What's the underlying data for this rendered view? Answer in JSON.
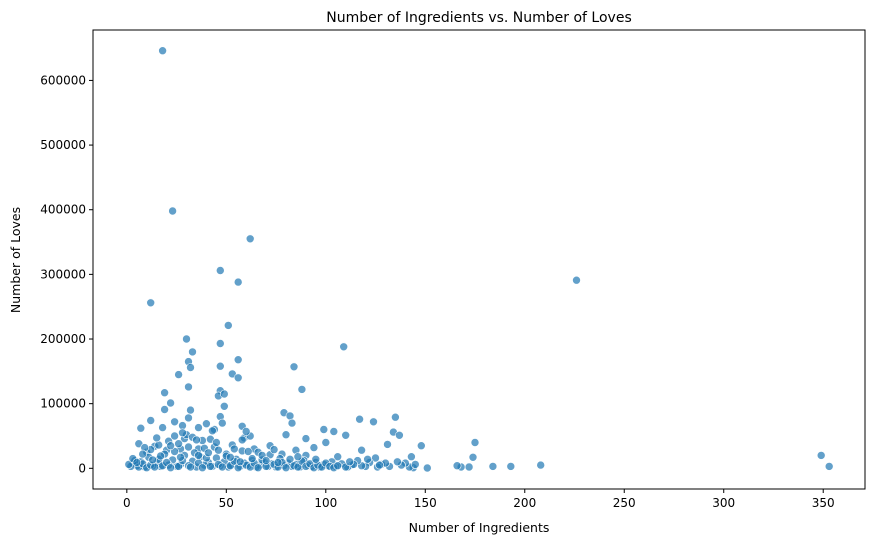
{
  "chart_data": {
    "type": "scatter",
    "title": "Number of Ingredients vs. Number of Loves",
    "xlabel": "Number of Ingredients",
    "ylabel": "Number of Loves",
    "xlim": [
      -17,
      371
    ],
    "ylim": [
      -32000,
      678000
    ],
    "xticks": [
      0,
      50,
      100,
      150,
      200,
      250,
      300,
      350
    ],
    "yticks": [
      0,
      100000,
      200000,
      300000,
      400000,
      500000,
      600000
    ],
    "grid": false,
    "marker_color": "#1f77b4",
    "marker_opacity": 0.7,
    "points": [
      [
        18,
        646000
      ],
      [
        23,
        398000
      ],
      [
        62,
        355000
      ],
      [
        47,
        306000
      ],
      [
        56,
        288000
      ],
      [
        226,
        291000
      ],
      [
        12,
        256000
      ],
      [
        51,
        221000
      ],
      [
        30,
        200000
      ],
      [
        47,
        193000
      ],
      [
        109,
        188000
      ],
      [
        33,
        180000
      ],
      [
        56,
        168000
      ],
      [
        31,
        165000
      ],
      [
        32,
        156000
      ],
      [
        47,
        158000
      ],
      [
        84,
        157000
      ],
      [
        53,
        146000
      ],
      [
        26,
        145000
      ],
      [
        56,
        140000
      ],
      [
        31,
        126000
      ],
      [
        88,
        122000
      ],
      [
        47,
        120000
      ],
      [
        46,
        112000
      ],
      [
        49,
        115000
      ],
      [
        19,
        117000
      ],
      [
        22,
        101000
      ],
      [
        49,
        96000
      ],
      [
        32,
        90000
      ],
      [
        19,
        91000
      ],
      [
        79,
        86000
      ],
      [
        82,
        81000
      ],
      [
        47,
        80000
      ],
      [
        31,
        78000
      ],
      [
        117,
        76000
      ],
      [
        124,
        72000
      ],
      [
        135,
        79000
      ],
      [
        12,
        74000
      ],
      [
        24,
        72000
      ],
      [
        83,
        70000
      ],
      [
        40,
        69000
      ],
      [
        28,
        66000
      ],
      [
        58,
        65000
      ],
      [
        7,
        62000
      ],
      [
        18,
        63000
      ],
      [
        36,
        63000
      ],
      [
        99,
        60000
      ],
      [
        104,
        57000
      ],
      [
        134,
        56000
      ],
      [
        110,
        51000
      ],
      [
        137,
        51000
      ],
      [
        59,
        47000
      ],
      [
        62,
        50000
      ],
      [
        60,
        57000
      ],
      [
        80,
        52000
      ],
      [
        90,
        46000
      ],
      [
        42,
        45000
      ],
      [
        29,
        46000
      ],
      [
        175,
        40000
      ],
      [
        131,
        37000
      ],
      [
        100,
        40000
      ],
      [
        148,
        35000
      ],
      [
        6,
        38000
      ],
      [
        53,
        36000
      ],
      [
        72,
        35000
      ],
      [
        38,
        43000
      ],
      [
        44,
        60000
      ],
      [
        27,
        30000
      ],
      [
        14,
        34000
      ],
      [
        94,
        32000
      ],
      [
        64,
        30000
      ],
      [
        85,
        28000
      ],
      [
        118,
        28000
      ],
      [
        10,
        25000
      ],
      [
        20,
        28000
      ],
      [
        36,
        30000
      ],
      [
        50,
        22000
      ],
      [
        66,
        25000
      ],
      [
        78,
        22000
      ],
      [
        90,
        20000
      ],
      [
        106,
        18000
      ],
      [
        125,
        16000
      ],
      [
        143,
        18000
      ],
      [
        174,
        17000
      ],
      [
        349,
        20000
      ],
      [
        353,
        3000
      ],
      [
        208,
        5000
      ],
      [
        193,
        3000
      ],
      [
        184,
        3000
      ],
      [
        172,
        2000
      ],
      [
        168,
        2000
      ],
      [
        166,
        4000
      ],
      [
        151,
        500
      ],
      [
        144,
        1000
      ],
      [
        142,
        2000
      ],
      [
        140,
        8000
      ],
      [
        138,
        5000
      ],
      [
        136,
        10000
      ],
      [
        132,
        3000
      ],
      [
        128,
        6000
      ],
      [
        126,
        2000
      ],
      [
        122,
        9000
      ],
      [
        120,
        3000
      ],
      [
        118,
        4000
      ],
      [
        116,
        12000
      ],
      [
        113,
        5000
      ],
      [
        111,
        2000
      ],
      [
        108,
        7000
      ],
      [
        105,
        3000
      ],
      [
        103,
        10000
      ],
      [
        101,
        4000
      ],
      [
        99,
        6000
      ],
      [
        97,
        2000
      ],
      [
        95,
        9000
      ],
      [
        93,
        3000
      ],
      [
        91,
        5000
      ],
      [
        89,
        12000
      ],
      [
        87,
        2000
      ],
      [
        85,
        6000
      ],
      [
        83,
        3000
      ],
      [
        81,
        8000
      ],
      [
        79,
        4000
      ],
      [
        77,
        15000
      ],
      [
        75,
        2000
      ],
      [
        73,
        7000
      ],
      [
        71,
        3000
      ],
      [
        69,
        10000
      ],
      [
        67,
        5000
      ],
      [
        65,
        2000
      ],
      [
        63,
        12000
      ],
      [
        61,
        4000
      ],
      [
        59,
        8000
      ],
      [
        57,
        3000
      ],
      [
        55,
        14000
      ],
      [
        53,
        6000
      ],
      [
        51,
        2000
      ],
      [
        49,
        10000
      ],
      [
        47,
        4000
      ],
      [
        45,
        16000
      ],
      [
        43,
        3000
      ],
      [
        41,
        9000
      ],
      [
        39,
        5000
      ],
      [
        37,
        18000
      ],
      [
        35,
        2000
      ],
      [
        33,
        11000
      ],
      [
        31,
        4000
      ],
      [
        29,
        20000
      ],
      [
        27,
        6000
      ],
      [
        25,
        3000
      ],
      [
        23,
        13000
      ],
      [
        21,
        5000
      ],
      [
        19,
        22000
      ],
      [
        17,
        3000
      ],
      [
        15,
        9000
      ],
      [
        13,
        4000
      ],
      [
        11,
        17000
      ],
      [
        9,
        2000
      ],
      [
        7,
        10000
      ],
      [
        5,
        4000
      ],
      [
        3,
        8000
      ],
      [
        2,
        3000
      ],
      [
        1,
        6000
      ],
      [
        4,
        12000
      ],
      [
        6,
        2000
      ],
      [
        8,
        7000
      ],
      [
        10,
        1000
      ],
      [
        12,
        5000
      ],
      [
        14,
        2000
      ],
      [
        16,
        14000
      ],
      [
        18,
        4000
      ],
      [
        20,
        9000
      ],
      [
        22,
        1000
      ],
      [
        24,
        26000
      ],
      [
        26,
        3000
      ],
      [
        28,
        12000
      ],
      [
        30,
        52000
      ],
      [
        32,
        2000
      ],
      [
        34,
        24000
      ],
      [
        36,
        8000
      ],
      [
        38,
        1000
      ],
      [
        40,
        16000
      ],
      [
        42,
        3000
      ],
      [
        44,
        33000
      ],
      [
        46,
        6000
      ],
      [
        48,
        2000
      ],
      [
        50,
        19000
      ],
      [
        52,
        4000
      ],
      [
        54,
        11000
      ],
      [
        56,
        1000
      ],
      [
        58,
        27000
      ],
      [
        60,
        5000
      ],
      [
        62,
        2000
      ],
      [
        64,
        8000
      ],
      [
        66,
        1000
      ],
      [
        68,
        13000
      ],
      [
        70,
        3000
      ],
      [
        72,
        21000
      ],
      [
        74,
        6000
      ],
      [
        76,
        2000
      ],
      [
        78,
        9000
      ],
      [
        80,
        1000
      ],
      [
        82,
        14000
      ],
      [
        84,
        4000
      ],
      [
        86,
        2000
      ],
      [
        88,
        11000
      ],
      [
        90,
        3000
      ],
      [
        92,
        7000
      ],
      [
        94,
        1000
      ],
      [
        96,
        5000
      ],
      [
        98,
        2000
      ],
      [
        100,
        8000
      ],
      [
        102,
        3000
      ],
      [
        104,
        1000
      ],
      [
        106,
        4000
      ],
      [
        110,
        2000
      ],
      [
        114,
        6000
      ],
      [
        28,
        55000
      ],
      [
        33,
        48000
      ],
      [
        21,
        42000
      ],
      [
        16,
        36000
      ],
      [
        45,
        40000
      ],
      [
        39,
        31000
      ],
      [
        26,
        38000
      ],
      [
        48,
        70000
      ],
      [
        43,
        58000
      ],
      [
        35,
        44000
      ],
      [
        24,
        50000
      ],
      [
        15,
        47000
      ],
      [
        12,
        29000
      ],
      [
        9,
        32000
      ],
      [
        58,
        44000
      ],
      [
        54,
        30000
      ],
      [
        61,
        26000
      ],
      [
        68,
        20000
      ],
      [
        74,
        29000
      ],
      [
        86,
        18000
      ],
      [
        95,
        14000
      ],
      [
        112,
        10000
      ],
      [
        130,
        8000
      ],
      [
        145,
        6000
      ],
      [
        121,
        14000
      ],
      [
        127,
        5000
      ],
      [
        3,
        15000
      ],
      [
        5,
        9000
      ],
      [
        8,
        22000
      ],
      [
        13,
        13000
      ],
      [
        17,
        19000
      ],
      [
        22,
        35000
      ],
      [
        27,
        17000
      ],
      [
        31,
        33000
      ],
      [
        36,
        20000
      ],
      [
        41,
        24000
      ],
      [
        46,
        28000
      ],
      [
        52,
        17000
      ],
      [
        57,
        10000
      ],
      [
        63,
        15000
      ],
      [
        70,
        12000
      ],
      [
        76,
        9000
      ]
    ]
  }
}
